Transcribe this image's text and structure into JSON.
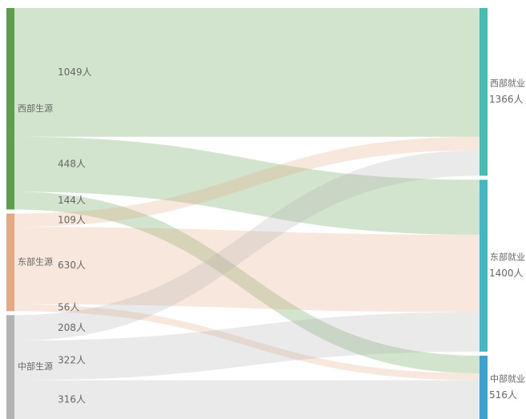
{
  "chart_data": {
    "type": "sankey",
    "nodes": [
      {
        "name": "西部生源",
        "color": "#5e9e4e",
        "side": "source"
      },
      {
        "name": "东部生源",
        "color": "#e3a985",
        "side": "source"
      },
      {
        "name": "中部生源",
        "color": "#b3b3b3",
        "side": "source"
      },
      {
        "name": "西部就业",
        "color": "#45bdb5",
        "side": "target",
        "value": 1366,
        "value_label": "1366人"
      },
      {
        "name": "东部就业",
        "color": "#42b9c2",
        "side": "target",
        "value": 1400,
        "value_label": "1400人"
      },
      {
        "name": "中部就业",
        "color": "#3ba3cf",
        "side": "target",
        "value": 516,
        "value_label": "516人"
      }
    ],
    "links": [
      {
        "source": 0,
        "target": 3,
        "value": 1049,
        "value_label": "1049人"
      },
      {
        "source": 0,
        "target": 4,
        "value": 448,
        "value_label": "448人"
      },
      {
        "source": 0,
        "target": 5,
        "value": 144,
        "value_label": "144人"
      },
      {
        "source": 1,
        "target": 3,
        "value": 109,
        "value_label": "109人"
      },
      {
        "source": 1,
        "target": 4,
        "value": 630,
        "value_label": "630人"
      },
      {
        "source": 1,
        "target": 5,
        "value": 56,
        "value_label": "56人"
      },
      {
        "source": 2,
        "target": 3,
        "value": 208,
        "value_label": "208人"
      },
      {
        "source": 2,
        "target": 4,
        "value": 322,
        "value_label": "322人"
      },
      {
        "source": 2,
        "target": 5,
        "value": 316,
        "value_label": "316人"
      }
    ]
  }
}
